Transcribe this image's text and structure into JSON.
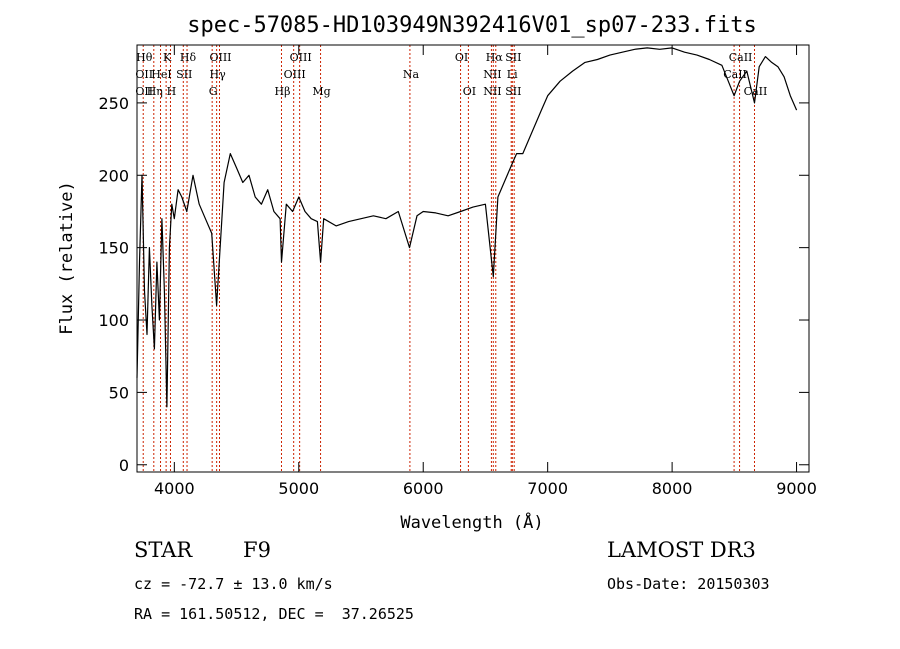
{
  "chart_data": {
    "type": "line",
    "title": "spec-57085-HD103949N392416V01_sp07-233.fits",
    "xlabel": "Wavelength (Å)",
    "ylabel": "Flux (relative)",
    "xlim": [
      3700,
      9100
    ],
    "ylim": [
      -5,
      290
    ],
    "xticks": [
      4000,
      5000,
      6000,
      7000,
      8000,
      9000
    ],
    "yticks": [
      0,
      50,
      100,
      150,
      200,
      250
    ],
    "grid": false,
    "line_color": "#000000",
    "marker_color": "#cc2200",
    "series": [
      {
        "x": [
          3700,
          3720,
          3740,
          3760,
          3780,
          3800,
          3820,
          3840,
          3860,
          3880,
          3900,
          3920,
          3940,
          3960,
          3980,
          4000,
          4030,
          4060,
          4100,
          4150,
          4200,
          4250,
          4300,
          4340,
          4400,
          4450,
          4500,
          4550,
          4600,
          4650,
          4700,
          4750,
          4800,
          4850,
          4861,
          4900,
          4950,
          5000,
          5050,
          5100,
          5150,
          5175,
          5200,
          5300,
          5400,
          5500,
          5600,
          5700,
          5800,
          5890,
          5950,
          6000,
          6100,
          6200,
          6300,
          6400,
          6500,
          6563,
          6600,
          6650,
          6700,
          6750,
          6800,
          6850,
          6900,
          6950,
          7000,
          7100,
          7200,
          7300,
          7400,
          7500,
          7600,
          7700,
          7800,
          7900,
          8000,
          8100,
          8200,
          8300,
          8400,
          8498,
          8542,
          8600,
          8662,
          8700,
          8750,
          8800,
          8850,
          8900,
          8950,
          9000
        ],
        "y": [
          60,
          140,
          200,
          120,
          90,
          150,
          110,
          80,
          140,
          100,
          170,
          120,
          40,
          150,
          180,
          170,
          190,
          185,
          175,
          200,
          180,
          170,
          160,
          110,
          195,
          215,
          205,
          195,
          200,
          185,
          180,
          190,
          175,
          170,
          140,
          180,
          175,
          185,
          175,
          170,
          168,
          140,
          170,
          165,
          168,
          170,
          172,
          170,
          175,
          150,
          172,
          175,
          174,
          172,
          175,
          178,
          180,
          130,
          185,
          195,
          205,
          215,
          215,
          225,
          235,
          245,
          255,
          265,
          272,
          278,
          280,
          283,
          285,
          287,
          288,
          287,
          288,
          285,
          283,
          280,
          276,
          255,
          265,
          272,
          250,
          275,
          282,
          278,
          275,
          268,
          255,
          245
        ]
      }
    ],
    "lines_left": [
      {
        "w": 3750,
        "labels": [
          "Hθ",
          "OII",
          "OII"
        ]
      },
      {
        "w": 3835,
        "labels": [
          "",
          "",
          "Hη"
        ]
      },
      {
        "w": 3889,
        "labels": [
          "",
          "HeI",
          ""
        ]
      },
      {
        "w": 3934,
        "labels": [
          "K",
          "",
          ""
        ]
      },
      {
        "w": 3969,
        "labels": [
          "",
          "",
          "H"
        ]
      },
      {
        "w": 4072,
        "labels": [
          "",
          "SII",
          ""
        ]
      },
      {
        "w": 4102,
        "labels": [
          "Hδ",
          "",
          ""
        ]
      },
      {
        "w": 4304,
        "labels": [
          "",
          "",
          "G"
        ]
      },
      {
        "w": 4340,
        "labels": [
          "",
          "Hγ",
          ""
        ]
      },
      {
        "w": 4363,
        "labels": [
          "OIII",
          "",
          ""
        ]
      },
      {
        "w": 4861,
        "labels": [
          "",
          "",
          "Hβ"
        ]
      },
      {
        "w": 4959,
        "labels": [
          "",
          "OIII",
          ""
        ]
      },
      {
        "w": 5007,
        "labels": [
          "OIII",
          "",
          ""
        ]
      },
      {
        "w": 5175,
        "labels": [
          "",
          "",
          "Mg"
        ]
      },
      {
        "w": 5893,
        "labels": [
          "",
          "Na",
          ""
        ]
      }
    ],
    "lines_right": [
      {
        "w": 6300,
        "labels": [
          "OI",
          "",
          ""
        ]
      },
      {
        "w": 6363,
        "labels": [
          "",
          "",
          "OI"
        ]
      },
      {
        "w": 6548,
        "labels": [
          "",
          "NII",
          "NII"
        ]
      },
      {
        "w": 6563,
        "labels": [
          "Hα",
          "",
          ""
        ]
      },
      {
        "w": 6583,
        "labels": [
          "",
          "",
          ""
        ]
      },
      {
        "w": 6707,
        "labels": [
          "",
          "Li",
          ""
        ]
      },
      {
        "w": 6716,
        "labels": [
          "SII",
          "",
          "SII"
        ]
      },
      {
        "w": 6731,
        "labels": [
          "",
          "",
          ""
        ]
      },
      {
        "w": 8498,
        "labels": [
          "",
          "CaII",
          ""
        ]
      },
      {
        "w": 8542,
        "labels": [
          "CaII",
          "",
          ""
        ]
      },
      {
        "w": 8662,
        "labels": [
          "",
          "",
          "CaII"
        ]
      }
    ]
  },
  "info": {
    "class_label": "STAR",
    "subclass": "F9",
    "survey": "LAMOST DR3",
    "cz": "cz = -72.7 ± 13.0 km/s",
    "obs_date": "Obs-Date: 20150303",
    "radec": "RA = 161.50512, DEC =  37.26525"
  }
}
